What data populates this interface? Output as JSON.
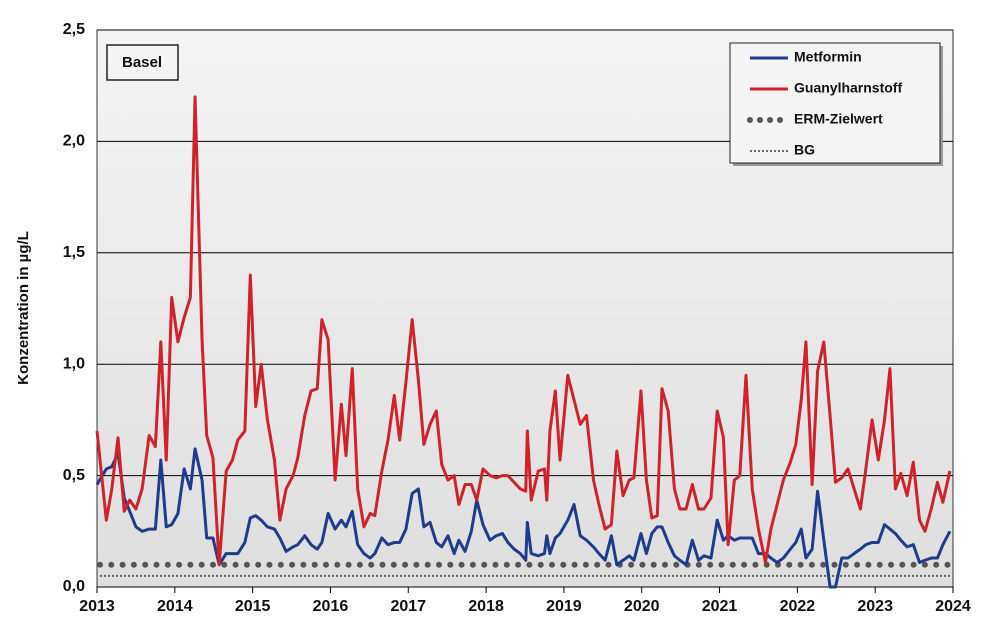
{
  "chart_data": {
    "type": "line",
    "annotation": "Basel",
    "y_label": "Konzentration in µg/L",
    "xlim": [
      2013,
      2024
    ],
    "xticks": [
      2013,
      2014,
      2015,
      2016,
      2017,
      2018,
      2019,
      2020,
      2021,
      2022,
      2023,
      2024
    ],
    "ylim": [
      0,
      2.5
    ],
    "yticks": [
      {
        "value": 0,
        "label": "0,0"
      },
      {
        "value": 0.5,
        "label": "0,5"
      },
      {
        "value": 1,
        "label": "1,0"
      },
      {
        "value": 1.5,
        "label": "1,5"
      },
      {
        "value": 2,
        "label": "2,0"
      },
      {
        "value": 2.5,
        "label": "2,5"
      }
    ],
    "grid": true,
    "legend": "top-right",
    "x": [
      2013.0,
      2013.12,
      2013.19,
      2013.27,
      2013.35,
      2013.42,
      2013.5,
      2013.58,
      2013.67,
      2013.75,
      2013.82,
      2013.89,
      2013.96,
      2014.04,
      2014.12,
      2014.2,
      2014.26,
      2014.35,
      2014.41,
      2014.49,
      2014.57,
      2014.66,
      2014.74,
      2014.81,
      2014.9,
      2014.97,
      2015.04,
      2015.11,
      2015.19,
      2015.28,
      2015.35,
      2015.43,
      2015.52,
      2015.58,
      2015.67,
      2015.75,
      2015.83,
      2015.89,
      2015.97,
      2016.06,
      2016.14,
      2016.2,
      2016.28,
      2016.35,
      2016.43,
      2016.51,
      2016.57,
      2016.66,
      2016.74,
      2016.82,
      2016.89,
      2016.97,
      2017.05,
      2017.13,
      2017.2,
      2017.28,
      2017.36,
      2017.43,
      2017.51,
      2017.59,
      2017.65,
      2017.73,
      2017.81,
      2017.88,
      2017.96,
      2018.05,
      2018.13,
      2018.21,
      2018.28,
      2018.36,
      2018.44,
      2018.51,
      2018.53,
      2018.58,
      2018.67,
      2018.75,
      2018.78,
      2018.82,
      2018.89,
      2018.95,
      2019.05,
      2019.13,
      2019.21,
      2019.29,
      2019.38,
      2019.45,
      2019.53,
      2019.61,
      2019.68,
      2019.76,
      2019.84,
      2019.9,
      2019.99,
      2020.06,
      2020.13,
      2020.2,
      2020.26,
      2020.34,
      2020.42,
      2020.49,
      2020.57,
      2020.65,
      2020.73,
      2020.8,
      2020.89,
      2020.97,
      2021.05,
      2021.11,
      2021.19,
      2021.26,
      2021.34,
      2021.42,
      2021.5,
      2021.59,
      2021.66,
      2021.74,
      2021.82,
      2021.91,
      2021.98,
      2022.05,
      2022.11,
      2022.19,
      2022.26,
      2022.34,
      2022.42,
      2022.49,
      2022.57,
      2022.65,
      2022.73,
      2022.81,
      2022.88,
      2022.96,
      2023.04,
      2023.12,
      2023.19,
      2023.26,
      2023.33,
      2023.41,
      2023.49,
      2023.57,
      2023.64,
      2023.72,
      2023.8,
      2023.87,
      2023.96
    ],
    "series": [
      {
        "name": "Metformin",
        "color": "#1f3c8c",
        "values": [
          0.46,
          0.53,
          0.54,
          0.6,
          0.4,
          0.34,
          0.27,
          0.25,
          0.26,
          0.26,
          0.57,
          0.27,
          0.28,
          0.33,
          0.53,
          0.44,
          0.62,
          0.48,
          0.22,
          0.22,
          0.1,
          0.15,
          0.15,
          0.15,
          0.2,
          0.31,
          0.32,
          0.3,
          0.27,
          0.26,
          0.22,
          0.16,
          0.18,
          0.19,
          0.23,
          0.19,
          0.17,
          0.2,
          0.33,
          0.26,
          0.3,
          0.27,
          0.34,
          0.19,
          0.15,
          0.13,
          0.15,
          0.22,
          0.19,
          0.2,
          0.2,
          0.26,
          0.42,
          0.44,
          0.27,
          0.29,
          0.2,
          0.18,
          0.23,
          0.15,
          0.21,
          0.16,
          0.25,
          0.39,
          0.28,
          0.21,
          0.23,
          0.24,
          0.2,
          0.17,
          0.15,
          0.12,
          0.29,
          0.15,
          0.14,
          0.15,
          0.23,
          0.15,
          0.22,
          0.24,
          0.3,
          0.37,
          0.23,
          0.21,
          0.18,
          0.15,
          0.12,
          0.23,
          0.1,
          0.12,
          0.14,
          0.12,
          0.24,
          0.15,
          0.24,
          0.27,
          0.27,
          0.2,
          0.14,
          0.12,
          0.1,
          0.21,
          0.12,
          0.14,
          0.13,
          0.3,
          0.21,
          0.23,
          0.21,
          0.22,
          0.22,
          0.22,
          0.15,
          0.15,
          0.13,
          0.11,
          0.13,
          0.17,
          0.2,
          0.26,
          0.13,
          0.17,
          0.43,
          0.21,
          0.0,
          0.0,
          0.13,
          0.13,
          0.15,
          0.17,
          0.19,
          0.2,
          0.2,
          0.28,
          0.26,
          0.24,
          0.21,
          0.18,
          0.19,
          0.11,
          0.12,
          0.13,
          0.13,
          0.19,
          0.25
        ]
      },
      {
        "name": "Guanylharnstoff",
        "color": "#d0222c",
        "values": [
          0.7,
          0.3,
          0.44,
          0.67,
          0.34,
          0.39,
          0.35,
          0.44,
          0.68,
          0.63,
          1.1,
          0.57,
          1.3,
          1.1,
          1.21,
          1.3,
          2.2,
          1.11,
          0.68,
          0.58,
          0.1,
          0.52,
          0.57,
          0.66,
          0.7,
          1.4,
          0.81,
          1.0,
          0.75,
          0.57,
          0.3,
          0.44,
          0.5,
          0.58,
          0.77,
          0.88,
          0.89,
          1.2,
          1.11,
          0.48,
          0.82,
          0.59,
          0.98,
          0.44,
          0.27,
          0.33,
          0.32,
          0.52,
          0.66,
          0.86,
          0.66,
          0.92,
          1.2,
          0.93,
          0.64,
          0.73,
          0.79,
          0.55,
          0.48,
          0.5,
          0.37,
          0.46,
          0.46,
          0.39,
          0.53,
          0.5,
          0.49,
          0.5,
          0.5,
          0.47,
          0.44,
          0.43,
          0.7,
          0.39,
          0.52,
          0.53,
          0.39,
          0.7,
          0.88,
          0.57,
          0.95,
          0.84,
          0.73,
          0.77,
          0.48,
          0.37,
          0.26,
          0.28,
          0.61,
          0.41,
          0.48,
          0.49,
          0.88,
          0.48,
          0.31,
          0.32,
          0.89,
          0.79,
          0.44,
          0.35,
          0.35,
          0.46,
          0.35,
          0.35,
          0.4,
          0.79,
          0.67,
          0.19,
          0.48,
          0.5,
          0.95,
          0.44,
          0.26,
          0.11,
          0.26,
          0.37,
          0.48,
          0.56,
          0.64,
          0.84,
          1.1,
          0.46,
          0.97,
          1.1,
          0.77,
          0.47,
          0.49,
          0.53,
          0.44,
          0.35,
          0.53,
          0.75,
          0.57,
          0.75,
          0.98,
          0.44,
          0.51,
          0.41,
          0.56,
          0.3,
          0.25,
          0.35,
          0.47,
          0.38,
          0.52
        ]
      }
    ],
    "reference_lines": [
      {
        "name": "ERM-Zielwert",
        "value": 0.1,
        "color": "#555555",
        "style": "dots"
      },
      {
        "name": "BG",
        "value": 0.05,
        "color": "#666666",
        "style": "dotted"
      }
    ]
  }
}
